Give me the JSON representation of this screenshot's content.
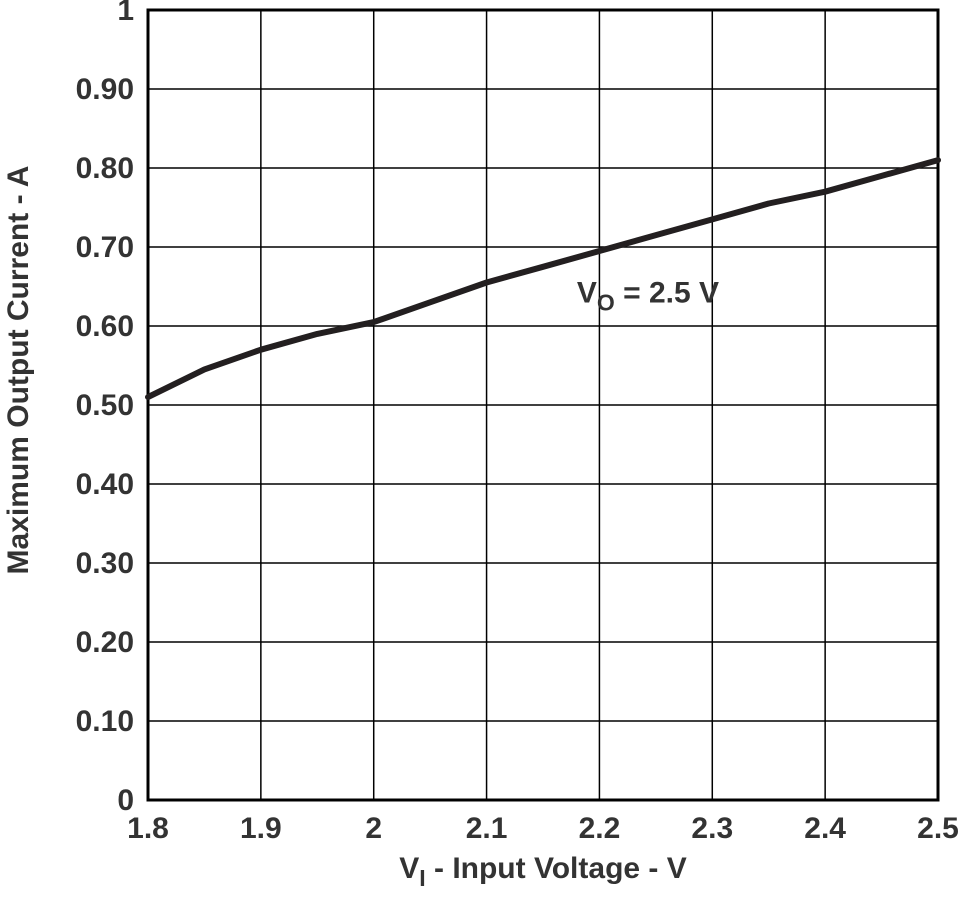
{
  "chart_data": {
    "type": "line",
    "title": "",
    "xlabel": {
      "pre": "V",
      "sub": "I",
      "post": " - Input Voltage - V"
    },
    "ylabel": "Maximum Output Current - A",
    "annotation": {
      "pre": "V",
      "sub": "O",
      "post": " = 2.5 V",
      "x": 2.18,
      "y": 0.63
    },
    "x": [
      1.8,
      1.85,
      1.9,
      1.95,
      2.0,
      2.05,
      2.1,
      2.15,
      2.2,
      2.25,
      2.3,
      2.35,
      2.4,
      2.45,
      2.5
    ],
    "values": [
      0.51,
      0.545,
      0.57,
      0.59,
      0.605,
      0.63,
      0.655,
      0.675,
      0.695,
      0.715,
      0.735,
      0.755,
      0.77,
      0.79,
      0.81
    ],
    "xlim": [
      1.8,
      2.5
    ],
    "ylim": [
      0,
      1
    ],
    "x_ticks": [
      1.8,
      1.9,
      2,
      2.1,
      2.2,
      2.3,
      2.4,
      2.5
    ],
    "x_tick_labels": [
      "1.8",
      "1.9",
      "2",
      "2.1",
      "2.2",
      "2.3",
      "2.4",
      "2.5"
    ],
    "y_ticks": [
      0,
      0.1,
      0.2,
      0.3,
      0.4,
      0.5,
      0.6,
      0.7,
      0.8,
      0.9,
      1
    ],
    "y_tick_labels": [
      "0",
      "0.10",
      "0.20",
      "0.30",
      "0.40",
      "0.50",
      "0.60",
      "0.70",
      "0.80",
      "0.90",
      "1"
    ],
    "grid": true,
    "legend": "none",
    "line_color": "#231f20",
    "text_color": "#333333",
    "grid_color": "#000000",
    "background": "#ffffff"
  }
}
